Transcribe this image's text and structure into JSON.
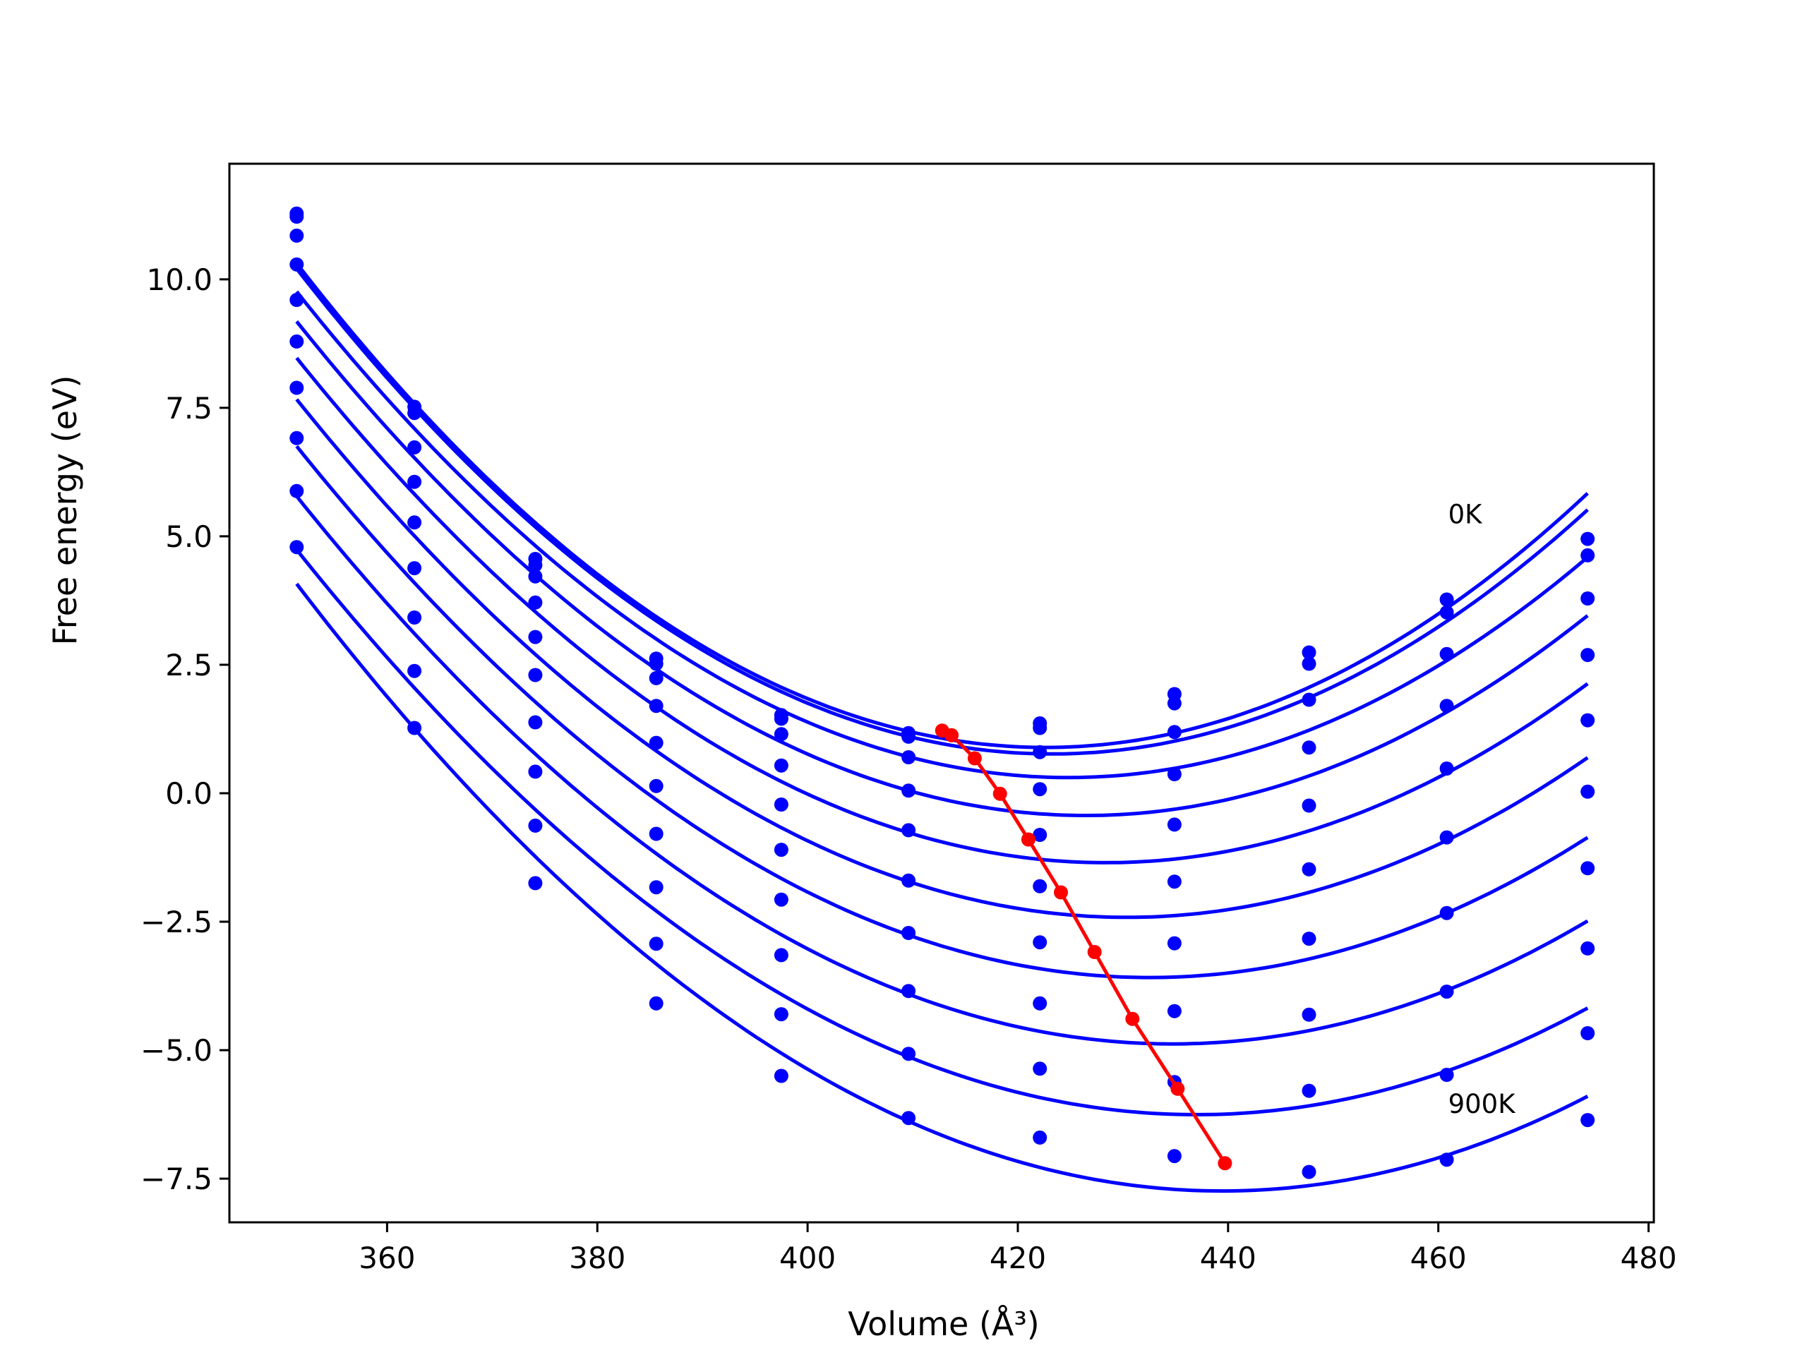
{
  "chart_data": {
    "type": "line",
    "title": "",
    "xlabel": "Volume (Å³)",
    "ylabel": "Free energy (eV)",
    "xlim": [
      345.0,
      480.5
    ],
    "ylim": [
      -8.35,
      12.25
    ],
    "xticks": [
      360,
      380,
      400,
      420,
      440,
      460,
      480
    ],
    "xtick_labels": [
      "360",
      "380",
      "400",
      "420",
      "440",
      "460",
      "480"
    ],
    "yticks": [
      -7.5,
      -5.0,
      -2.5,
      0.0,
      2.5,
      5.0,
      7.5,
      10.0
    ],
    "ytick_labels": [
      "−7.5",
      "−5.0",
      "−2.5",
      "0.0",
      "2.5",
      "5.0",
      "7.5",
      "10.0"
    ],
    "grid": false,
    "colors": {
      "series": "#0000ff",
      "minimum": "#ff0000"
    },
    "volumes": [
      351.4,
      362.6,
      374.1,
      385.6,
      397.5,
      409.6,
      422.1,
      434.9,
      447.7,
      460.8,
      474.2
    ],
    "series": [
      {
        "name": "0K",
        "values": [
          11.28,
          7.52,
          4.56,
          2.62,
          1.52,
          1.17,
          1.36,
          1.93,
          2.74,
          3.77,
          4.95
        ],
        "min": [
          412.8,
          1.22
        ]
      },
      {
        "values": [
          11.22,
          7.4,
          4.44,
          2.52,
          1.45,
          1.1,
          1.27,
          1.75,
          2.52,
          3.52,
          4.63
        ],
        "min": [
          413.7,
          1.13
        ]
      },
      {
        "values": [
          10.85,
          6.73,
          4.22,
          2.24,
          1.15,
          0.7,
          0.8,
          1.19,
          1.82,
          2.71,
          3.79
        ],
        "min": [
          415.9,
          0.68
        ]
      },
      {
        "values": [
          10.29,
          6.06,
          3.71,
          1.7,
          0.54,
          0.05,
          0.08,
          0.37,
          0.89,
          1.7,
          2.69
        ],
        "min": [
          418.3,
          -0.01
        ]
      },
      {
        "values": [
          9.6,
          5.27,
          3.04,
          0.98,
          -0.22,
          -0.72,
          -0.81,
          -0.61,
          -0.24,
          0.48,
          1.42
        ],
        "min": [
          421.0,
          -0.9
        ]
      },
      {
        "values": [
          8.79,
          4.38,
          2.3,
          0.14,
          -1.1,
          -1.7,
          -1.81,
          -1.72,
          -1.48,
          -0.86,
          0.03
        ],
        "min": [
          424.1,
          -1.93
        ]
      },
      {
        "values": [
          7.89,
          3.42,
          1.38,
          -0.79,
          -2.07,
          -2.72,
          -2.9,
          -2.92,
          -2.83,
          -2.33,
          -1.46
        ],
        "min": [
          427.3,
          -3.09
        ]
      },
      {
        "values": [
          6.91,
          2.38,
          0.42,
          -1.83,
          -3.15,
          -3.85,
          -4.09,
          -4.24,
          -4.31,
          -3.86,
          -3.02
        ],
        "min": [
          430.9,
          -4.39
        ]
      },
      {
        "values": [
          5.88,
          1.27,
          -0.63,
          -2.93,
          -4.3,
          -5.07,
          -5.36,
          -5.62,
          -5.79,
          -5.48,
          -4.67
        ],
        "min": [
          435.2,
          -5.75
        ]
      },
      {
        "name": "900K",
        "values": [
          4.79,
          null,
          -1.75,
          -4.09,
          -5.5,
          -6.32,
          -6.7,
          -7.06,
          -7.37,
          -7.13,
          -6.36
        ],
        "min": [
          439.7,
          -7.2
        ]
      }
    ],
    "annotations": [
      {
        "text": "0K",
        "x": 460.8,
        "y": 5.25
      },
      {
        "text": "900K",
        "x": 460.8,
        "y": -6.22
      }
    ]
  }
}
